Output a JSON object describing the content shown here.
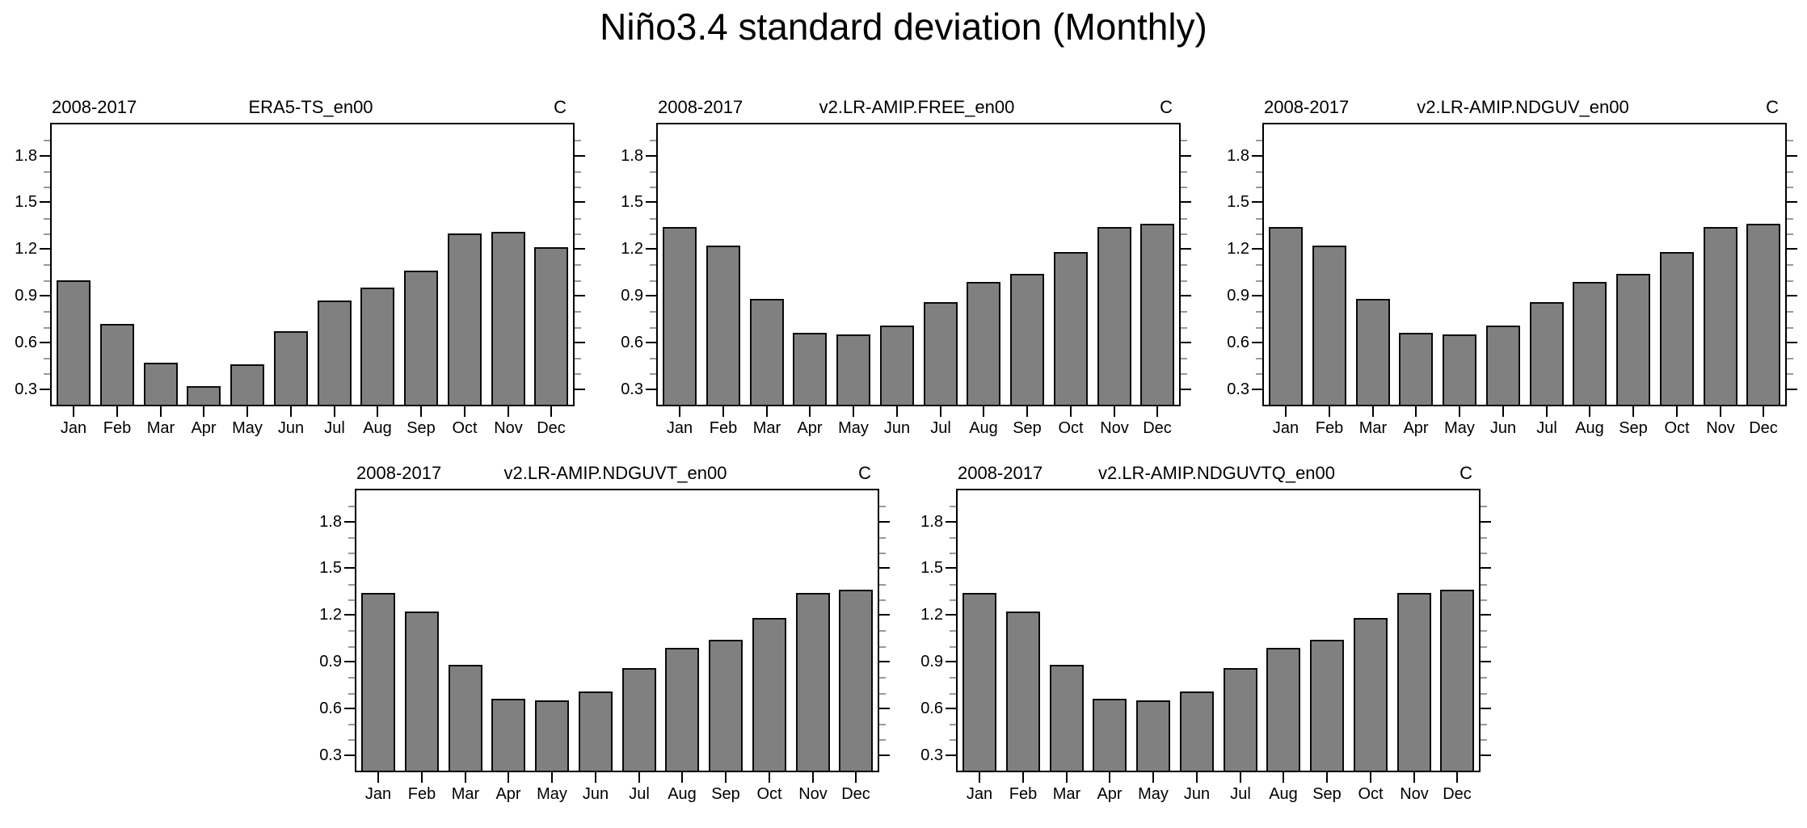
{
  "page_title": "Niño3.4 standard deviation (Monthly)",
  "chart_data": [
    {
      "type": "bar",
      "title": "ERA5-TS_en00",
      "period": "2008-2017",
      "unit": "C",
      "categories": [
        "Jan",
        "Feb",
        "Mar",
        "Apr",
        "May",
        "Jun",
        "Jul",
        "Aug",
        "Sep",
        "Oct",
        "Nov",
        "Dec"
      ],
      "values": [
        1.0,
        0.72,
        0.47,
        0.32,
        0.46,
        0.67,
        0.87,
        0.95,
        1.06,
        1.3,
        1.31,
        1.21
      ],
      "ylim": [
        0.2,
        2.0
      ],
      "yticks": [
        0.3,
        0.6,
        0.9,
        1.2,
        1.5,
        1.8
      ],
      "yticks_minor_step": 0.1,
      "bar_color": "#808080",
      "bar_edge_color": "#0a0a0a",
      "grid": false,
      "legend": "none"
    },
    {
      "type": "bar",
      "title": "v2.LR-AMIP.FREE_en00",
      "period": "2008-2017",
      "unit": "C",
      "categories": [
        "Jan",
        "Feb",
        "Mar",
        "Apr",
        "May",
        "Jun",
        "Jul",
        "Aug",
        "Sep",
        "Oct",
        "Nov",
        "Dec"
      ],
      "values": [
        1.34,
        1.22,
        0.88,
        0.66,
        0.65,
        0.71,
        0.86,
        0.99,
        1.04,
        1.18,
        1.34,
        1.36
      ],
      "ylim": [
        0.2,
        2.0
      ],
      "yticks": [
        0.3,
        0.6,
        0.9,
        1.2,
        1.5,
        1.8
      ],
      "yticks_minor_step": 0.1,
      "bar_color": "#808080",
      "bar_edge_color": "#0a0a0a",
      "grid": false,
      "legend": "none"
    },
    {
      "type": "bar",
      "title": "v2.LR-AMIP.NDGUV_en00",
      "period": "2008-2017",
      "unit": "C",
      "categories": [
        "Jan",
        "Feb",
        "Mar",
        "Apr",
        "May",
        "Jun",
        "Jul",
        "Aug",
        "Sep",
        "Oct",
        "Nov",
        "Dec"
      ],
      "values": [
        1.34,
        1.22,
        0.88,
        0.66,
        0.65,
        0.71,
        0.86,
        0.99,
        1.04,
        1.18,
        1.34,
        1.36
      ],
      "ylim": [
        0.2,
        2.0
      ],
      "yticks": [
        0.3,
        0.6,
        0.9,
        1.2,
        1.5,
        1.8
      ],
      "yticks_minor_step": 0.1,
      "bar_color": "#808080",
      "bar_edge_color": "#0a0a0a",
      "grid": false,
      "legend": "none"
    },
    {
      "type": "bar",
      "title": "v2.LR-AMIP.NDGUVT_en00",
      "period": "2008-2017",
      "unit": "C",
      "categories": [
        "Jan",
        "Feb",
        "Mar",
        "Apr",
        "May",
        "Jun",
        "Jul",
        "Aug",
        "Sep",
        "Oct",
        "Nov",
        "Dec"
      ],
      "values": [
        1.34,
        1.22,
        0.88,
        0.66,
        0.65,
        0.71,
        0.86,
        0.99,
        1.04,
        1.18,
        1.34,
        1.36
      ],
      "ylim": [
        0.2,
        2.0
      ],
      "yticks": [
        0.3,
        0.6,
        0.9,
        1.2,
        1.5,
        1.8
      ],
      "yticks_minor_step": 0.1,
      "bar_color": "#808080",
      "bar_edge_color": "#0a0a0a",
      "grid": false,
      "legend": "none"
    },
    {
      "type": "bar",
      "title": "v2.LR-AMIP.NDGUVTQ_en00",
      "period": "2008-2017",
      "unit": "C",
      "categories": [
        "Jan",
        "Feb",
        "Mar",
        "Apr",
        "May",
        "Jun",
        "Jul",
        "Aug",
        "Sep",
        "Oct",
        "Nov",
        "Dec"
      ],
      "values": [
        1.34,
        1.22,
        0.88,
        0.66,
        0.65,
        0.71,
        0.86,
        0.99,
        1.04,
        1.18,
        1.34,
        1.36
      ],
      "ylim": [
        0.2,
        2.0
      ],
      "yticks": [
        0.3,
        0.6,
        0.9,
        1.2,
        1.5,
        1.8
      ],
      "yticks_minor_step": 0.1,
      "bar_color": "#808080",
      "bar_edge_color": "#0a0a0a",
      "grid": false,
      "legend": "none"
    }
  ]
}
